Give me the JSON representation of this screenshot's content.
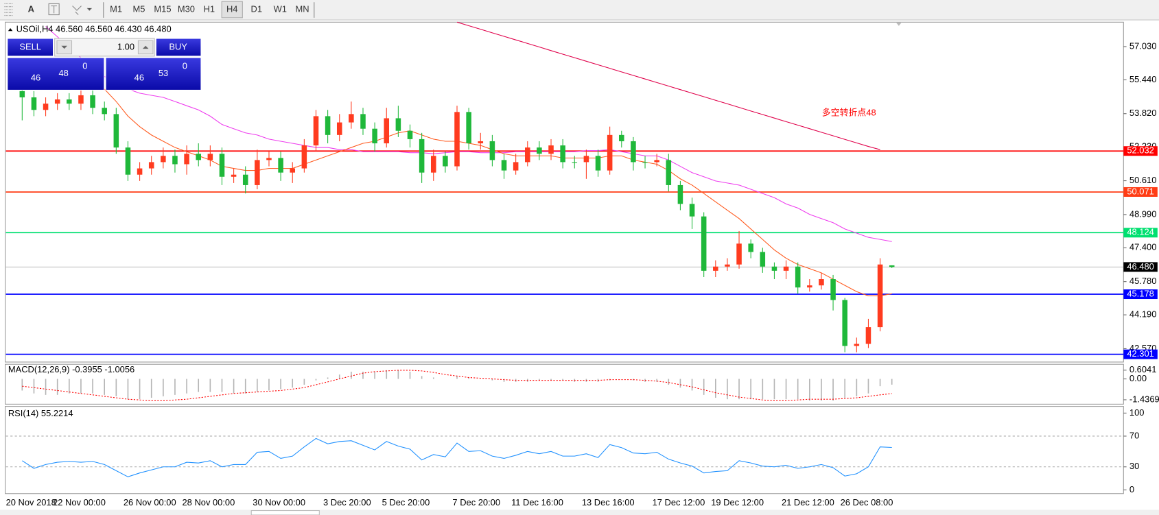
{
  "toolbar": {
    "text_tool": "A",
    "timeframes": [
      "M1",
      "M5",
      "M15",
      "M30",
      "H1",
      "H4",
      "D1",
      "W1",
      "MN"
    ]
  },
  "trade_panel": {
    "sell": "SELL",
    "lot": "1.00",
    "buy": "BUY",
    "sell_price": [
      "46",
      "48",
      "0"
    ],
    "buy_price": [
      "46",
      "53",
      "0"
    ]
  },
  "chart_data": [
    {
      "type": "candlestick",
      "title": "USOil,H4  46.560 46.560 46.430 46.480",
      "categories": [
        "20 Nov 2018",
        null,
        null,
        null,
        "22 Nov 00:00",
        null,
        null,
        null,
        null,
        null,
        "26 Nov 00:00",
        null,
        null,
        null,
        null,
        "28 Nov 00:00",
        null,
        null,
        null,
        null,
        null,
        "30 Nov 00:00",
        null,
        null,
        null,
        null,
        null,
        "3 Dec 20:00",
        null,
        null,
        null,
        null,
        "5 Dec 20:00",
        null,
        null,
        null,
        null,
        null,
        "7 Dec 20:00",
        null,
        null,
        null,
        null,
        "11 Dec 16:00",
        null,
        null,
        null,
        null,
        null,
        "13 Dec 16:00",
        null,
        null,
        null,
        null,
        null,
        "17 Dec 12:00",
        null,
        null,
        null,
        null,
        "19 Dec 12:00",
        null,
        null,
        null,
        null,
        null,
        "21 Dec 12:00",
        null,
        null,
        null,
        null,
        "26 Dec 08:00",
        null,
        null,
        null
      ],
      "open": [
        54.9,
        54.6,
        54.0,
        54.3,
        54.5,
        54.3,
        54.7,
        54.1,
        53.8,
        52.2,
        50.9,
        51.2,
        51.5,
        51.8,
        51.4,
        51.9,
        51.6,
        51.9,
        50.8,
        50.9,
        50.4,
        51.6,
        51.7,
        51.0,
        51.2,
        52.3,
        53.7,
        52.8,
        53.4,
        53.8,
        53.1,
        52.4,
        53.6,
        53.0,
        52.6,
        51.0,
        51.8,
        51.3,
        53.9,
        52.4,
        52.5,
        51.6,
        51.1,
        51.5,
        52.2,
        51.9,
        52.3,
        51.5,
        51.5,
        51.8,
        51.1,
        52.8,
        52.5,
        51.5,
        51.5,
        51.6,
        50.4,
        49.5,
        48.9,
        46.3,
        46.5,
        46.6,
        47.6,
        47.2,
        46.5,
        46.3,
        46.5,
        45.5,
        45.6,
        45.9,
        44.9,
        42.7,
        42.8,
        43.6,
        46.56
      ],
      "high": [
        55.2,
        54.9,
        54.6,
        54.8,
        54.8,
        55.0,
        55.0,
        54.4,
        54.1,
        52.5,
        51.5,
        51.8,
        52.2,
        52.1,
        52.3,
        52.4,
        52.3,
        52.2,
        51.2,
        51.3,
        52.1,
        52.0,
        52.0,
        51.5,
        52.6,
        54.0,
        54.0,
        53.8,
        54.4,
        54.1,
        53.4,
        54.1,
        54.2,
        53.3,
        52.9,
        52.1,
        52.0,
        54.2,
        54.1,
        52.9,
        52.8,
        51.9,
        51.9,
        52.5,
        52.5,
        52.6,
        52.6,
        51.8,
        52.1,
        52.1,
        53.2,
        53.0,
        52.7,
        51.8,
        51.9,
        51.9,
        50.6,
        49.8,
        49.1,
        46.8,
        46.9,
        48.2,
        47.8,
        47.4,
        46.7,
        46.8,
        46.7,
        45.9,
        46.2,
        46.1,
        45.0,
        43.1,
        44.0,
        46.9,
        46.56
      ],
      "low": [
        53.5,
        53.7,
        53.7,
        54.0,
        54.0,
        54.0,
        53.8,
        53.5,
        51.9,
        50.6,
        50.6,
        50.9,
        51.2,
        51.0,
        50.9,
        51.3,
        51.3,
        50.4,
        50.5,
        50.0,
        50.2,
        51.3,
        50.6,
        50.5,
        51.0,
        52.0,
        52.4,
        52.5,
        53.1,
        52.8,
        52.0,
        52.2,
        52.7,
        52.2,
        50.5,
        50.6,
        51.0,
        51.1,
        52.1,
        52.1,
        51.3,
        50.7,
        50.9,
        51.3,
        51.6,
        51.6,
        51.2,
        51.2,
        50.7,
        50.8,
        50.9,
        52.2,
        51.1,
        51.2,
        51.3,
        50.1,
        49.2,
        48.3,
        46.0,
        46.0,
        46.3,
        46.4,
        46.9,
        46.2,
        45.9,
        45.9,
        45.2,
        45.3,
        45.4,
        44.4,
        42.4,
        42.4,
        42.6,
        43.4,
        46.43
      ],
      "close": [
        54.6,
        54.0,
        54.3,
        54.5,
        54.3,
        54.7,
        54.1,
        53.8,
        52.2,
        50.9,
        51.2,
        51.5,
        51.8,
        51.4,
        51.9,
        51.6,
        51.9,
        50.8,
        50.9,
        50.4,
        51.6,
        51.7,
        51.0,
        51.2,
        52.3,
        53.7,
        52.8,
        53.4,
        53.8,
        53.1,
        52.4,
        53.6,
        53.0,
        52.6,
        51.0,
        51.8,
        51.3,
        53.9,
        52.4,
        52.5,
        51.6,
        51.1,
        51.5,
        52.2,
        51.9,
        52.3,
        51.5,
        51.5,
        51.8,
        51.1,
        52.8,
        52.5,
        51.5,
        51.5,
        51.6,
        50.4,
        49.5,
        48.9,
        46.3,
        46.5,
        46.6,
        47.6,
        47.2,
        46.5,
        46.3,
        46.5,
        45.5,
        45.6,
        45.9,
        44.9,
        42.7,
        42.8,
        43.6,
        46.6,
        46.48
      ],
      "up_color": "#ff3b1f",
      "down_color": "#1fb83a",
      "series": [
        {
          "color": "#e0004a",
          "values": [
            null,
            null,
            null,
            null,
            null,
            null,
            null,
            null,
            null,
            null,
            null,
            null,
            null,
            null,
            null,
            null,
            null,
            null,
            null,
            null,
            null,
            null,
            null,
            null,
            null,
            null,
            null,
            null,
            null,
            null,
            null,
            null,
            null,
            null,
            null,
            null,
            null,
            58.2,
            58.03,
            57.86,
            57.69,
            57.52,
            57.35,
            57.18,
            57.01,
            56.84,
            56.67,
            56.5,
            56.33,
            56.16,
            55.99,
            55.82,
            55.65,
            55.48,
            55.31,
            55.14,
            54.97,
            54.8,
            54.63,
            54.46,
            54.29,
            54.12,
            53.95,
            53.78,
            53.61,
            53.44,
            53.27,
            53.1,
            52.93,
            52.76,
            52.59,
            52.42,
            52.25,
            52.1,
            null
          ]
        },
        {
          "color": "#ee3cee",
          "values": [
            null,
            null,
            58.0,
            57.5,
            57.0,
            56.5,
            56.1,
            55.6,
            55.3,
            55.0,
            54.8,
            54.7,
            54.6,
            54.4,
            54.2,
            54.0,
            53.7,
            53.3,
            53.1,
            52.9,
            52.8,
            52.6,
            52.5,
            52.4,
            52.3,
            52.2,
            52.2,
            52.1,
            52.1,
            52.0,
            52.0,
            52.0,
            52.0,
            51.95,
            51.95,
            51.9,
            51.95,
            52.0,
            52.0,
            51.95,
            51.95,
            51.95,
            52.0,
            52.0,
            52.0,
            52.0,
            52.0,
            52.0,
            52.05,
            52.05,
            52.1,
            52.0,
            51.9,
            51.8,
            51.8,
            51.6,
            51.3,
            51.0,
            50.8,
            50.6,
            50.5,
            50.4,
            50.2,
            50.0,
            49.8,
            49.5,
            49.3,
            49.0,
            48.8,
            48.6,
            48.3,
            48.1,
            47.9,
            47.8,
            47.7
          ]
        },
        {
          "color": "#ff5a1e",
          "values": [
            null,
            null,
            null,
            null,
            null,
            null,
            null,
            55.0,
            54.4,
            53.7,
            53.2,
            52.8,
            52.5,
            52.2,
            52.0,
            51.8,
            51.6,
            51.3,
            51.2,
            51.1,
            51.1,
            51.2,
            51.2,
            51.2,
            51.4,
            51.6,
            51.8,
            52.0,
            52.2,
            52.4,
            52.5,
            52.7,
            52.9,
            53.0,
            52.8,
            52.6,
            52.5,
            52.5,
            52.4,
            52.3,
            52.1,
            51.9,
            51.8,
            51.8,
            51.8,
            51.8,
            51.7,
            51.7,
            51.7,
            51.7,
            51.8,
            51.8,
            51.6,
            51.5,
            51.4,
            51.1,
            50.7,
            50.4,
            50.0,
            49.6,
            49.2,
            48.8,
            48.3,
            47.8,
            47.3,
            46.9,
            46.6,
            46.4,
            46.2,
            45.9,
            45.6,
            45.3,
            45.1,
            45.1,
            45.2
          ]
        }
      ],
      "levels": [
        {
          "value": 52.032,
          "color": "#ff0000"
        },
        {
          "value": 50.071,
          "color": "#ff3c14"
        },
        {
          "value": 48.124,
          "color": "#00e070"
        },
        {
          "value": 45.178,
          "color": "#0000ff"
        },
        {
          "value": 42.301,
          "color": "#0000ff"
        }
      ],
      "bid": {
        "value": 46.48,
        "label": "46.480"
      },
      "annotation": "多空转折点48",
      "annotation_color": "#ff0000",
      "ylim": [
        41.93,
        58.2
      ],
      "yticks": [
        {
          "value": 57.03,
          "label": "57.030"
        },
        {
          "value": 55.44,
          "label": "55.440"
        },
        {
          "value": 53.82,
          "label": "53.820"
        },
        {
          "value": 52.23,
          "label": "52.230"
        },
        {
          "value": 50.61,
          "label": "50.610"
        },
        {
          "value": 48.99,
          "label": "48.990"
        },
        {
          "value": 47.4,
          "label": "47.400"
        },
        {
          "value": 45.78,
          "label": "45.780"
        },
        {
          "value": 44.19,
          "label": "44.190"
        },
        {
          "value": 42.57,
          "label": "42.570"
        }
      ]
    },
    {
      "type": "macd",
      "title": "MACD(12,26,9) -0.3955 -1.0056",
      "hist_color": "#b4b4b4",
      "values": [
        -0.8,
        -1.0,
        -1.1,
        -1.1,
        -1.0,
        -1.0,
        -1.0,
        -1.1,
        -1.2,
        -1.4,
        -1.4,
        -1.3,
        -1.2,
        -1.1,
        -1.0,
        -0.9,
        -0.9,
        -0.9,
        -1.0,
        -1.0,
        -0.9,
        -0.8,
        -0.7,
        -0.6,
        -0.4,
        -0.1,
        0.1,
        0.3,
        0.5,
        0.5,
        0.5,
        0.6,
        0.6,
        0.5,
        0.2,
        0.1,
        0.0,
        0.2,
        0.1,
        0.0,
        -0.1,
        -0.2,
        -0.2,
        -0.2,
        -0.1,
        -0.1,
        -0.1,
        -0.2,
        -0.2,
        -0.2,
        -0.1,
        0.0,
        -0.1,
        -0.2,
        -0.2,
        -0.4,
        -0.6,
        -0.8,
        -1.1,
        -1.3,
        -1.4,
        -1.4,
        -1.4,
        -1.4,
        -1.4,
        -1.4,
        -1.4,
        -1.5,
        -1.5,
        -1.5,
        -1.3,
        -1.2,
        -1.0,
        -0.5,
        -0.3955
      ],
      "series": [
        {
          "color": "#ff0000",
          "dash": true,
          "values": [
            -0.5,
            -0.6,
            -0.7,
            -0.8,
            -0.9,
            -1.0,
            -1.1,
            -1.2,
            -1.3,
            -1.4,
            -1.45,
            -1.5,
            -1.5,
            -1.45,
            -1.4,
            -1.3,
            -1.2,
            -1.1,
            -1.0,
            -0.95,
            -0.9,
            -0.85,
            -0.8,
            -0.7,
            -0.6,
            -0.4,
            -0.2,
            0.0,
            0.2,
            0.4,
            0.5,
            0.55,
            0.6,
            0.6,
            0.55,
            0.45,
            0.3,
            0.2,
            0.1,
            0.05,
            0.0,
            -0.05,
            -0.1,
            -0.1,
            -0.1,
            -0.1,
            -0.1,
            -0.1,
            -0.1,
            -0.1,
            -0.05,
            -0.05,
            -0.05,
            -0.1,
            -0.15,
            -0.25,
            -0.4,
            -0.55,
            -0.75,
            -0.95,
            -1.1,
            -1.25,
            -1.35,
            -1.45,
            -1.5,
            -1.5,
            -1.45,
            -1.4,
            -1.4,
            -1.4,
            -1.35,
            -1.3,
            -1.2,
            -1.1,
            -1.0056
          ]
        }
      ],
      "ylim": [
        -1.74,
        1.01
      ],
      "yticks": [
        0.6041,
        {
          "value": 0,
          "label": "0.00"
        },
        -1.4369
      ]
    },
    {
      "type": "line",
      "title": "RSI(14) 55.2214",
      "series": [
        {
          "color": "#1e90ff",
          "values": [
            38,
            28,
            33,
            36,
            37,
            36,
            37,
            33,
            25,
            17,
            22,
            26,
            30,
            30,
            36,
            35,
            38,
            30,
            33,
            33,
            49,
            50,
            41,
            44,
            56,
            67,
            60,
            63,
            64,
            58,
            52,
            63,
            57,
            53,
            39,
            46,
            43,
            61,
            50,
            51,
            44,
            41,
            45,
            50,
            47,
            50,
            44,
            44,
            47,
            42,
            59,
            55,
            48,
            47,
            49,
            40,
            35,
            31,
            22,
            24,
            25,
            38,
            35,
            31,
            30,
            32,
            28,
            30,
            33,
            29,
            18,
            21,
            30,
            56,
            55.2214
          ]
        }
      ],
      "levels": [
        70,
        30
      ],
      "ylim": [
        -4.8,
        108.7
      ],
      "yticks": [
        100,
        70,
        30,
        0
      ]
    }
  ]
}
